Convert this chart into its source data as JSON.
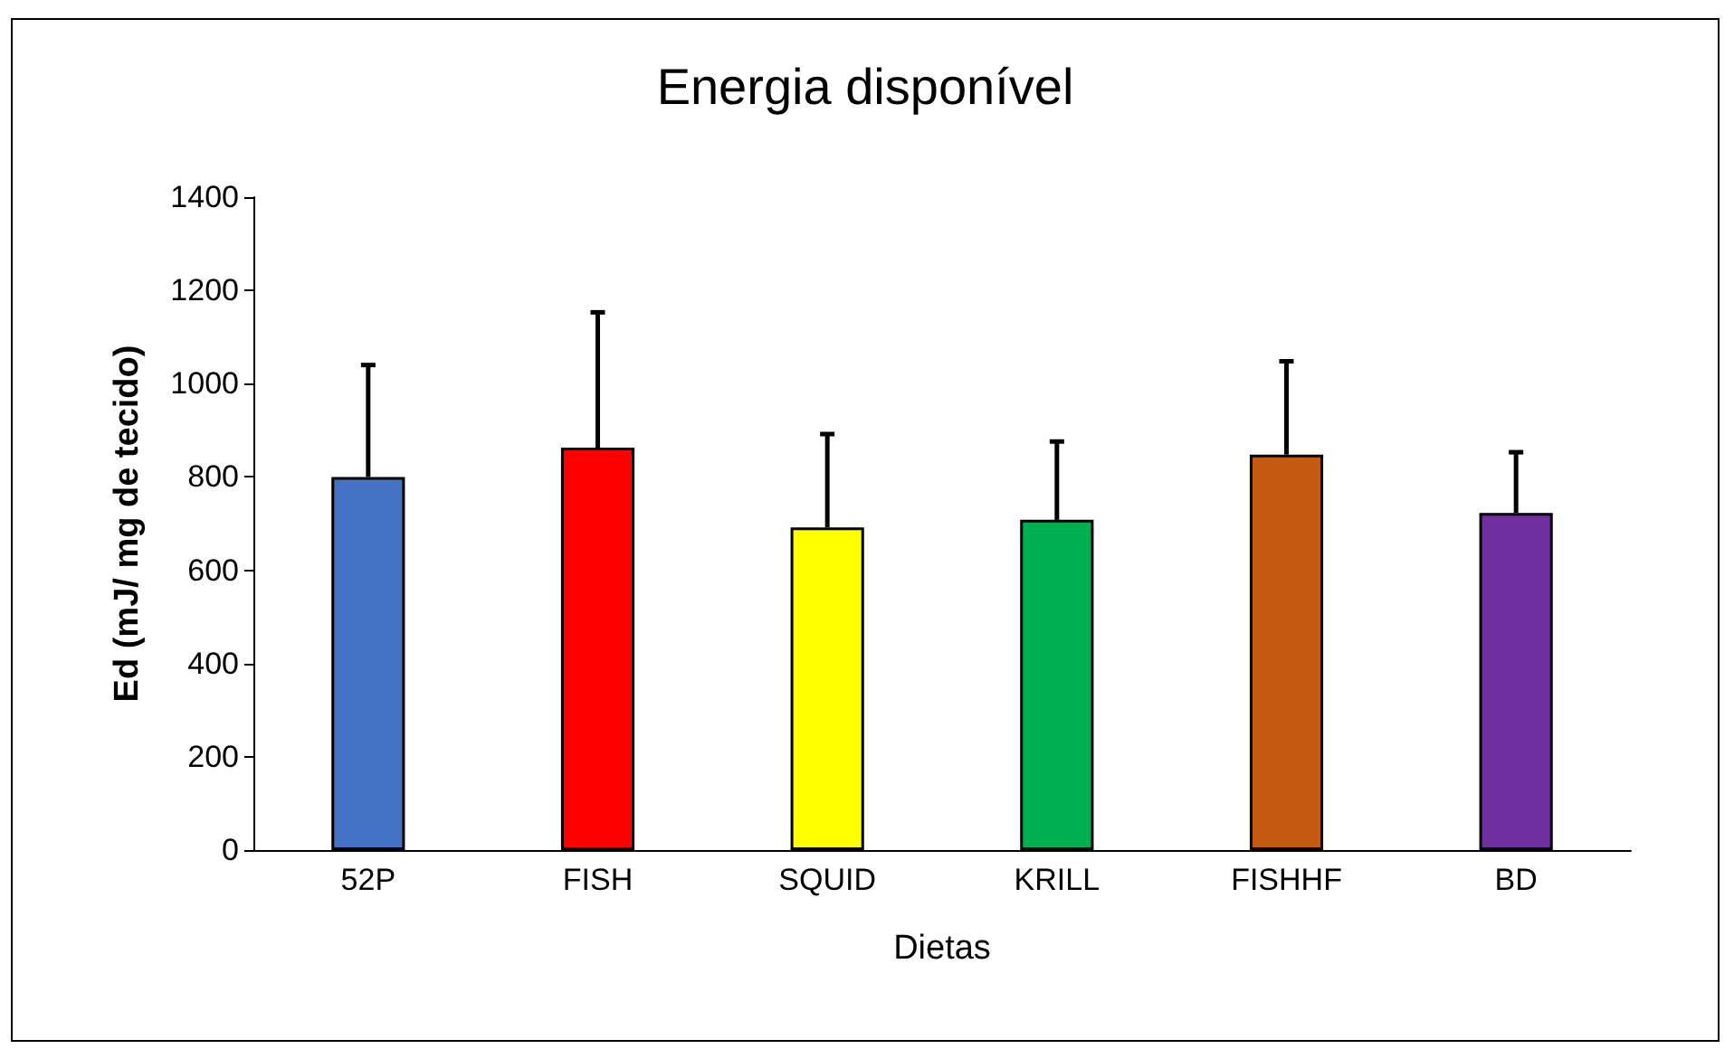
{
  "chart_data": {
    "type": "bar",
    "title": "Energia disponível",
    "xlabel": "Dietas",
    "ylabel": "Ed (mJ/ mg de tecido)",
    "categories": [
      "52P",
      "FISH",
      "SQUID",
      "KRILL",
      "FISHHF",
      "BD"
    ],
    "values": [
      800,
      863,
      692,
      708,
      848,
      723
    ],
    "colors": [
      "#4472c4",
      "#ff0000",
      "#ffff00",
      "#00b050",
      "#c55a11",
      "#7030a0"
    ],
    "errors": [
      [
        800,
        1040
      ],
      [
        863,
        1153
      ],
      [
        692,
        892
      ],
      [
        708,
        876
      ],
      [
        848,
        1048
      ],
      [
        723,
        853
      ]
    ],
    "ylim": [
      0,
      1400
    ],
    "yticks": [
      0,
      200,
      400,
      600,
      800,
      1000,
      1200,
      1400
    ],
    "grid": false
  }
}
